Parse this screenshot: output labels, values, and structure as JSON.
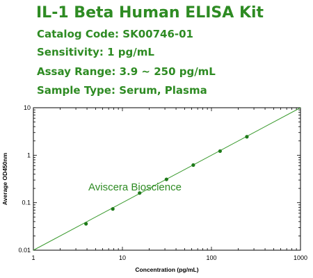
{
  "header": {
    "title": "IL-1 Beta Human ELISA Kit",
    "catalog": "Catalog Code: SK00746-01",
    "sensitivity": "Sensitivity: 1 pg/mL",
    "assay_range": "Assay Range: 3.9 ~ 250 pg/mL",
    "sample_type": "Sample Type: Serum, Plasma"
  },
  "colors": {
    "brand_green": "#2e8b23",
    "line_green": "#3a9a2e",
    "point_green": "#1f7a1a"
  },
  "chart_data": {
    "type": "scatter",
    "x_scale": "log",
    "y_scale": "log",
    "xlim": [
      1,
      1000
    ],
    "ylim": [
      0.01,
      10
    ],
    "xlabel": "Concentration (pg/mL)",
    "ylabel": "Average OD450nm",
    "x_ticks": [
      1,
      10,
      100,
      1000
    ],
    "x_tick_labels": [
      "1",
      "10",
      "100",
      "1000"
    ],
    "y_ticks": [
      0.01,
      0.1,
      1,
      10
    ],
    "y_tick_labels": [
      "0.01",
      "0.1",
      "1",
      "10"
    ],
    "series": [
      {
        "x": [
          3.9,
          7.8,
          15.6,
          31.25,
          62.5,
          125,
          250
        ],
        "y": [
          0.036,
          0.074,
          0.16,
          0.31,
          0.62,
          1.22,
          2.45
        ]
      }
    ],
    "fit_line": {
      "x": [
        1,
        1000
      ],
      "y": [
        0.01,
        10
      ]
    },
    "annotation": "Aviscera Bioscience",
    "grid": false
  }
}
